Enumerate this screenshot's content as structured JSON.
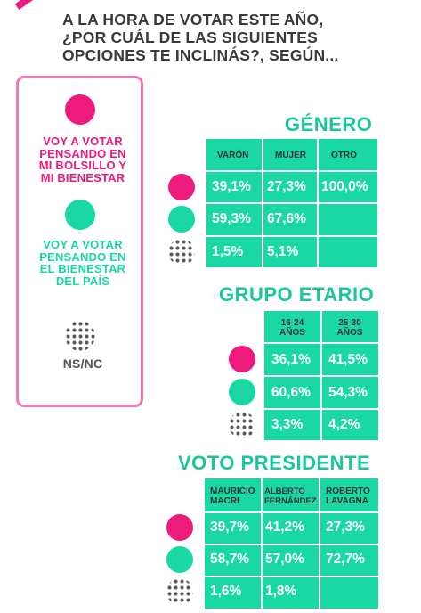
{
  "title_lines": [
    "A LA HORA DE VOTAR ESTE AÑO,",
    "¿POR CUÁL DE LAS SIGUIENTES",
    "OPCIONES TE INCLINÁS?, SEGÚN..."
  ],
  "legend": {
    "pocket": [
      "VOY A VOTAR",
      "PENSANDO EN",
      "MI BOLSILLO Y",
      "MI BIENESTAR"
    ],
    "country": [
      "VOY A VOTAR",
      "PENSANDO EN",
      "EL BIENESTAR",
      "DEL PAÍS"
    ],
    "nsnc": "NS/NC"
  },
  "colors": {
    "pocket": "#ec1b7c",
    "country": "#19d8a4",
    "nsnc": "#5a5a5a",
    "accent": "#19c79a"
  },
  "sections": {
    "genero": {
      "title": "GÉNERO",
      "headers": [
        "VARÓN",
        "MUJER",
        "OTRO"
      ],
      "rows": [
        [
          "39,1%",
          "27,3%",
          "100,0%"
        ],
        [
          "59,3%",
          "67,6%",
          ""
        ],
        [
          "1,5%",
          "5,1%",
          ""
        ]
      ]
    },
    "edad": {
      "title": "GRUPO ETARIO",
      "headers": [
        [
          "16-24",
          "AÑOS"
        ],
        [
          "25-30",
          "AÑOS"
        ]
      ],
      "rows": [
        [
          "36,1%",
          "41,5%"
        ],
        [
          "60,6%",
          "54,3%"
        ],
        [
          "3,3%",
          "4,2%"
        ]
      ]
    },
    "voto": {
      "title": "VOTO PRESIDENTE",
      "headers": [
        [
          "MAURICIO",
          "MACRI"
        ],
        [
          "ALBERTO",
          "FERNÁNDEZ"
        ],
        [
          "ROBERTO",
          "LAVAGNA"
        ]
      ],
      "rows": [
        [
          "39,7%",
          "41,2%",
          "27,3%"
        ],
        [
          "58,7%",
          "57,0%",
          "72,7%"
        ],
        [
          "1,6%",
          "1,8%",
          ""
        ]
      ]
    }
  },
  "chart_data": [
    {
      "type": "table",
      "title": "GÉNERO",
      "categories": [
        "VARÓN",
        "MUJER",
        "OTRO"
      ],
      "series": [
        {
          "name": "VOY A VOTAR PENSANDO EN MI BOLSILLO Y MI BIENESTAR",
          "values": [
            39.1,
            27.3,
            100.0
          ]
        },
        {
          "name": "VOY A VOTAR PENSANDO EN EL BIENESTAR DEL PAÍS",
          "values": [
            59.3,
            67.6,
            null
          ]
        },
        {
          "name": "NS/NC",
          "values": [
            1.5,
            5.1,
            null
          ]
        }
      ]
    },
    {
      "type": "table",
      "title": "GRUPO ETARIO",
      "categories": [
        "16-24 AÑOS",
        "25-30 AÑOS"
      ],
      "series": [
        {
          "name": "VOY A VOTAR PENSANDO EN MI BOLSILLO Y MI BIENESTAR",
          "values": [
            36.1,
            41.5
          ]
        },
        {
          "name": "VOY A VOTAR PENSANDO EN EL BIENESTAR DEL PAÍS",
          "values": [
            60.6,
            54.3
          ]
        },
        {
          "name": "NS/NC",
          "values": [
            3.3,
            4.2
          ]
        }
      ]
    },
    {
      "type": "table",
      "title": "VOTO PRESIDENTE",
      "categories": [
        "MAURICIO MACRI",
        "ALBERTO FERNÁNDEZ",
        "ROBERTO LAVAGNA"
      ],
      "series": [
        {
          "name": "VOY A VOTAR PENSANDO EN MI BOLSILLO Y MI BIENESTAR",
          "values": [
            39.7,
            41.2,
            27.3
          ]
        },
        {
          "name": "VOY A VOTAR PENSANDO EN EL BIENESTAR DEL PAÍS",
          "values": [
            58.7,
            57.0,
            72.7
          ]
        },
        {
          "name": "NS/NC",
          "values": [
            1.6,
            1.8,
            null
          ]
        }
      ]
    }
  ]
}
